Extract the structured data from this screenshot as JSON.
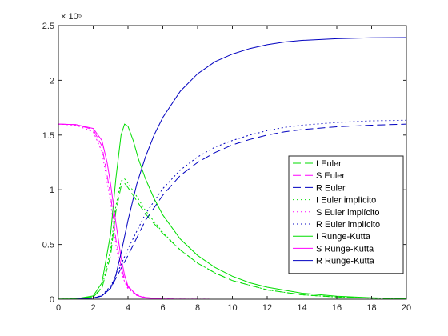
{
  "chart_data": {
    "type": "line",
    "x_ticks": [
      "0",
      "2",
      "4",
      "6",
      "8",
      "10",
      "12",
      "14",
      "16",
      "18",
      "20"
    ],
    "y_ticks": [
      "0",
      "0.5",
      "1",
      "1.5",
      "2",
      "2.5"
    ],
    "y_exponent": "× 10⁵",
    "xlim": [
      0,
      20
    ],
    "ylim": [
      0,
      250000
    ],
    "legend_position": "right",
    "grid": false,
    "series": [
      {
        "name": "I Euler",
        "color": "#00dd00",
        "dash": "10,5",
        "x": [
          0,
          1,
          2,
          2.5,
          3,
          3.3,
          3.6,
          3.8,
          4.0,
          4.5,
          5,
          6,
          7,
          8,
          9,
          10,
          12,
          14,
          16,
          18,
          20
        ],
        "values": [
          50,
          300,
          2000,
          10000,
          40000,
          80000,
          103000,
          106000,
          102000,
          90000,
          78000,
          60000,
          45000,
          33000,
          24000,
          17000,
          8500,
          4000,
          2000,
          900,
          500
        ]
      },
      {
        "name": "S Euler",
        "color": "#ff00ff",
        "dash": "10,5",
        "x": [
          0,
          1,
          2,
          2.5,
          3,
          3.3,
          3.6,
          3.8,
          4.0,
          4.5,
          5,
          6,
          7,
          8,
          10,
          20
        ],
        "values": [
          160000,
          159500,
          155000,
          140000,
          95000,
          55000,
          30000,
          18000,
          11000,
          4000,
          1500,
          400,
          100,
          50,
          10,
          0
        ]
      },
      {
        "name": "R Euler",
        "color": "#0000c0",
        "dash": "10,5",
        "x": [
          0,
          1,
          2,
          2.5,
          3,
          3.5,
          4,
          5,
          6,
          7,
          8,
          9,
          10,
          11,
          12,
          13,
          14,
          16,
          18,
          20
        ],
        "values": [
          0,
          100,
          1000,
          3000,
          10000,
          25000,
          40000,
          72000,
          95000,
          113000,
          125000,
          134000,
          141000,
          146000,
          150000,
          153000,
          155000,
          157500,
          159000,
          160000
        ]
      },
      {
        "name": "I Euler implícito",
        "color": "#00dd00",
        "dash": "2,3",
        "x": [
          0,
          1,
          2,
          2.5,
          3,
          3.3,
          3.6,
          3.8,
          4.0,
          4.5,
          5,
          6,
          7,
          8,
          9,
          10,
          12,
          14,
          16,
          18,
          20
        ],
        "values": [
          50,
          300,
          2200,
          11000,
          45000,
          85000,
          108000,
          110000,
          106000,
          94000,
          81000,
          61000,
          45000,
          33000,
          24000,
          17000,
          8500,
          4000,
          2000,
          900,
          500
        ]
      },
      {
        "name": "S Euler implícito",
        "color": "#ff00ff",
        "dash": "2,3",
        "x": [
          0,
          1,
          2,
          2.5,
          3,
          3.3,
          3.6,
          3.8,
          4.0,
          4.5,
          5,
          6,
          7,
          8,
          10,
          20
        ],
        "values": [
          160000,
          159000,
          153000,
          135000,
          88000,
          50000,
          26000,
          16000,
          9500,
          3500,
          1300,
          300,
          100,
          40,
          10,
          0
        ]
      },
      {
        "name": "R Euler implícito",
        "color": "#0000c0",
        "dash": "2,3",
        "x": [
          0,
          1,
          2,
          2.5,
          3,
          3.5,
          4,
          5,
          6,
          7,
          8,
          9,
          10,
          11,
          12,
          13,
          14,
          16,
          18,
          20
        ],
        "values": [
          0,
          100,
          1000,
          3500,
          12000,
          28000,
          46000,
          78000,
          101000,
          118000,
          130000,
          139000,
          145000,
          150000,
          154000,
          157000,
          159000,
          161500,
          163000,
          163500
        ]
      },
      {
        "name": "I Runge-Kutta",
        "color": "#00dd00",
        "dash": "",
        "x": [
          0,
          1,
          2,
          2.5,
          3,
          3.3,
          3.6,
          3.8,
          4.0,
          4.3,
          4.6,
          5,
          5.5,
          6,
          7,
          8,
          9,
          10,
          11,
          12,
          14,
          16,
          18,
          20
        ],
        "values": [
          50,
          400,
          3000,
          15000,
          60000,
          110000,
          150000,
          160000,
          158000,
          145000,
          128000,
          110000,
          92000,
          77000,
          55000,
          40000,
          29000,
          21000,
          15000,
          11000,
          5500,
          2700,
          1300,
          600
        ]
      },
      {
        "name": "S Runge-Kutta",
        "color": "#ff00ff",
        "dash": "",
        "x": [
          0,
          1,
          2,
          2.5,
          2.8,
          3,
          3.3,
          3.6,
          3.8,
          4.0,
          4.5,
          5,
          6,
          8,
          10,
          20
        ],
        "values": [
          160000,
          159500,
          156000,
          145000,
          125000,
          105000,
          70000,
          38000,
          22000,
          12000,
          3500,
          1000,
          200,
          20,
          5,
          0
        ]
      },
      {
        "name": "R Runge-Kutta",
        "color": "#0000c0",
        "dash": "",
        "x": [
          0,
          1,
          2,
          2.5,
          3,
          3.3,
          3.6,
          4,
          4.5,
          5,
          5.5,
          6,
          7,
          8,
          9,
          10,
          11,
          12,
          13,
          14,
          16,
          18,
          20
        ],
        "values": [
          0,
          100,
          1000,
          3000,
          10000,
          22000,
          42000,
          72000,
          105000,
          130000,
          150000,
          166000,
          190000,
          206000,
          217000,
          224000,
          229000,
          232500,
          235000,
          236500,
          238000,
          238800,
          239000
        ]
      }
    ]
  }
}
